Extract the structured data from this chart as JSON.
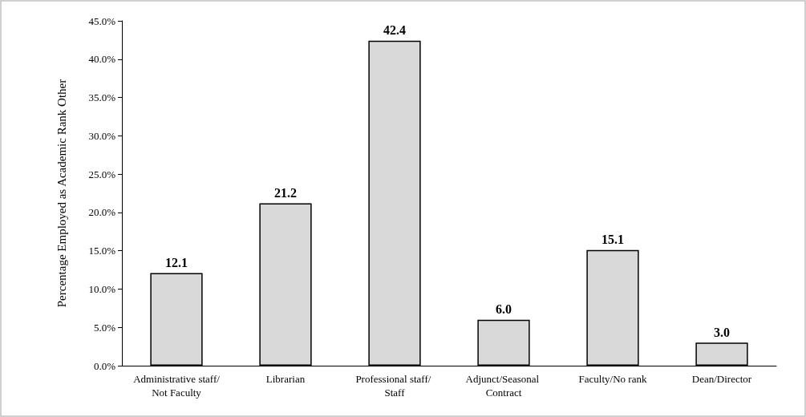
{
  "chart_data": {
    "type": "bar",
    "ylabel": "Percentage Employed as Academic Rank Other",
    "categories": [
      "Administrative staff/Not Faculty",
      "Librarian",
      "Professional staff/ Staff",
      "Adjunct/Seasonal Contract",
      "Faculty/No rank",
      "Dean/Director"
    ],
    "values": [
      12.1,
      21.2,
      42.4,
      6.0,
      15.1,
      3.0
    ],
    "color": "#d9d9d9",
    "ylim": [
      0,
      45
    ],
    "yticks": [
      {
        "value": 0,
        "label": "0.0%"
      },
      {
        "value": 5,
        "label": "5.0%"
      },
      {
        "value": 10,
        "label": "10.0%"
      },
      {
        "value": 15,
        "label": "15.0%"
      },
      {
        "value": 20,
        "label": "20.0%"
      },
      {
        "value": 25,
        "label": "25.0%"
      },
      {
        "value": 30,
        "label": "30.0%"
      },
      {
        "value": 35,
        "label": "35.0%"
      },
      {
        "value": 40,
        "label": "40.0%"
      },
      {
        "value": 45,
        "label": "45.0%"
      }
    ],
    "value_labels": [
      "12.1",
      "21.2",
      "42.4",
      "6.0",
      "15.1",
      "3.0"
    ],
    "grid": false
  }
}
